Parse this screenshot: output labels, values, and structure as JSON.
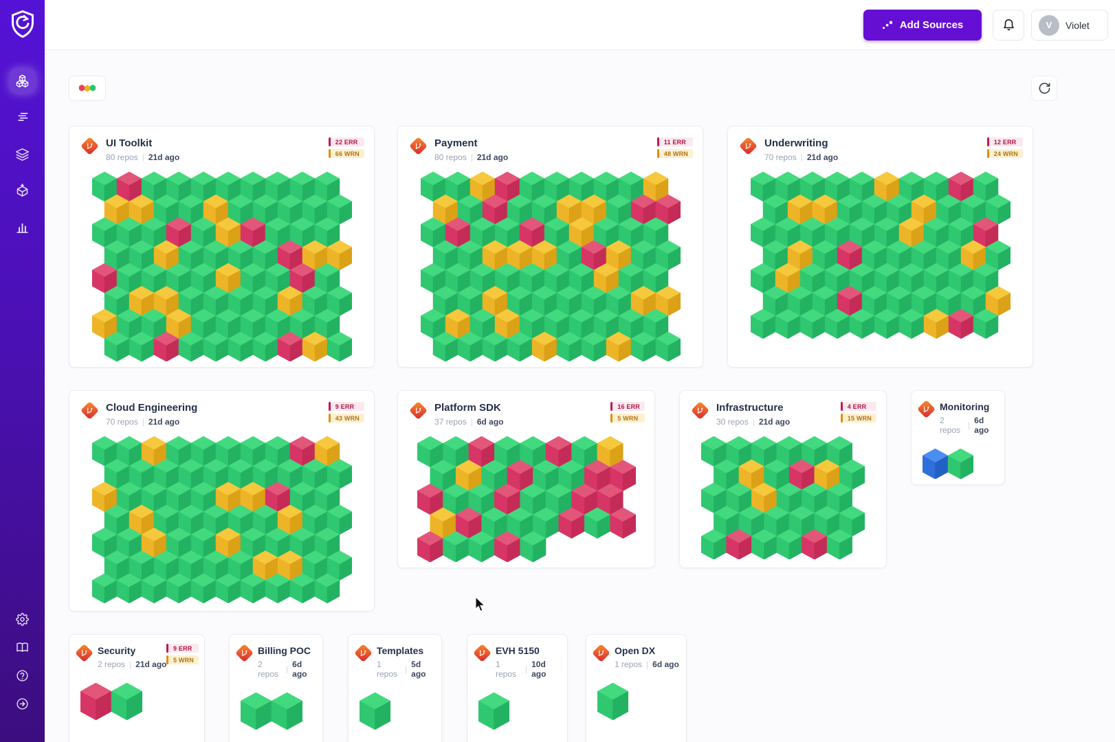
{
  "topbar": {
    "add_sources_label": "Add Sources",
    "user_initial": "V",
    "user_name": "Violet"
  },
  "ui": {
    "divider": "|"
  },
  "sidebar": {
    "nav_items": [
      {
        "label": "groups",
        "icon": "cubes-icon",
        "active": true
      },
      {
        "label": "activity",
        "icon": "stream-icon",
        "active": false
      },
      {
        "label": "layers",
        "icon": "layers-icon",
        "active": false
      },
      {
        "label": "add-package",
        "icon": "package-add-icon",
        "active": false
      },
      {
        "label": "analytics",
        "icon": "bar-chart-icon",
        "active": false
      }
    ],
    "footer_items": [
      {
        "label": "settings",
        "icon": "gear-icon"
      },
      {
        "label": "docs",
        "icon": "book-icon"
      },
      {
        "label": "help",
        "icon": "help-icon"
      },
      {
        "label": "logout",
        "icon": "logout-icon"
      }
    ]
  },
  "colors": {
    "accent": "#650fd4",
    "cube_palette": {
      "g": {
        "top": "#43d97f",
        "left": "#2fc770",
        "right": "#23b261"
      },
      "y": {
        "top": "#f6c83d",
        "left": "#eeb427",
        "right": "#dba117"
      },
      "r": {
        "top": "#e2567a",
        "left": "#d63566",
        "right": "#c52b57"
      },
      "b": {
        "top": "#4b8ef0",
        "left": "#2f6fdc",
        "right": "#2460c4"
      }
    },
    "err_badge": {
      "bg": "#fbe9ee",
      "text": "#b01445",
      "bar": "#c21653"
    },
    "wrn_badge": {
      "bg": "#fdf0cf",
      "text": "#b07310",
      "bar": "#dd9011"
    }
  },
  "cards": [
    {
      "title": "UI Toolkit",
      "repos": "80 repos",
      "updated": "21d ago",
      "err": "22 ERR",
      "wrn": "66 WRN",
      "cols": 10,
      "grid": [
        "grgggggggg",
        "yyggyggggg",
        "gggrgyrggg",
        "ggyggggryy",
        "rggggyggrg",
        "gyyggggygg",
        "yggygggggg",
        "ggrggggryg"
      ]
    },
    {
      "title": "Payment",
      "repos": "80 repos",
      "updated": "21d ago",
      "err": "11 ERR",
      "wrn": "48 WRN",
      "cols": 10,
      "grid": [
        "ggyrgggggy",
        "ygrggyygrr",
        "grggrgyggg",
        "ggyyygrygg",
        "gggggggygg",
        "ggygggggyy",
        "gygygggggg",
        "ggggyggygg"
      ]
    },
    {
      "title": "Underwriting",
      "repos": "70 repos",
      "updated": "21d ago",
      "err": "12 ERR",
      "wrn": "24 WRN",
      "cols": 10,
      "grid": [
        "gggggyggrg",
        "gyygggyggg",
        "ggggggyggr",
        "gygrggggyg",
        "gygggggggg",
        "gggrgggggy",
        "gggggggyrg"
      ]
    },
    {
      "title": "Cloud Engineering",
      "repos": "70 repos",
      "updated": "21d ago",
      "err": "9 ERR",
      "wrn": "43 WRN",
      "cols": 10,
      "grid": [
        "ggygggggry",
        "gggggggggg",
        "yggggyyrgg",
        "gygggggygg",
        "ggyggygggg",
        "ggggggyygg",
        "gggggggggg"
      ]
    },
    {
      "title": "Platform SDK",
      "repos": "37 repos",
      "updated": "6d ago",
      "err": "16 ERR",
      "wrn": "5 WRN",
      "cols": 8,
      "grid": [
        "ggrggrgy",
        "gygrggrr",
        "rggrggrr",
        "yrgggrgr",
        "rggrg"
      ]
    },
    {
      "title": "Infrastructure",
      "repos": "30 repos",
      "updated": "21d ago",
      "err": "4 ERR",
      "wrn": "15 WRN",
      "cols": 6,
      "grid": [
        "gggggg",
        "gygryg",
        "ggyggg",
        "gggggg",
        "grggrg"
      ]
    },
    {
      "title": "Monitoring",
      "repos": "2 repos",
      "updated": "6d ago",
      "err": "",
      "wrn": "",
      "cols": 2,
      "grid": [
        "bg"
      ]
    },
    {
      "title": "Security",
      "repos": "2 repos",
      "updated": "21d ago",
      "err": "9 ERR",
      "wrn": "5 WRN",
      "cols": 2,
      "grid": [
        "rg"
      ]
    },
    {
      "title": "Billing POC",
      "repos": "2 repos",
      "updated": "6d ago",
      "err": "",
      "wrn": "",
      "cols": 2,
      "grid": [
        "gg"
      ]
    },
    {
      "title": "Templates",
      "repos": "1 repos",
      "updated": "5d ago",
      "err": "",
      "wrn": "",
      "cols": 1,
      "grid": [
        "g"
      ]
    },
    {
      "title": "EVH 5150",
      "repos": "1 repos",
      "updated": "10d ago",
      "err": "",
      "wrn": "",
      "cols": 1,
      "grid": [
        "g"
      ]
    },
    {
      "title": "Open DX",
      "repos": "1 repos",
      "updated": "6d ago",
      "err": "",
      "wrn": "",
      "cols": 1,
      "grid": [
        "g"
      ]
    }
  ]
}
